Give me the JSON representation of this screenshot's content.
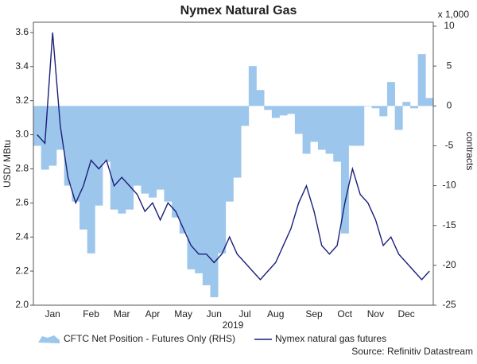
{
  "chart_data": {
    "type": "bar-line",
    "title": "Nymex Natural Gas",
    "y_label": "USD/ MBtu",
    "y2_label": "contracts",
    "y2_unit": "x 1,000",
    "x_label": "2019",
    "source": "Source: Refinitiv Datastream",
    "categories": [
      null,
      null,
      "Jan",
      null,
      null,
      null,
      null,
      "Feb",
      null,
      null,
      null,
      "Mar",
      null,
      null,
      null,
      "Apr",
      null,
      null,
      null,
      "May",
      null,
      null,
      null,
      "Jun",
      null,
      null,
      null,
      "Jul",
      null,
      null,
      null,
      "Aug",
      null,
      null,
      null,
      null,
      "Sep",
      null,
      null,
      null,
      "Oct",
      null,
      null,
      null,
      "Nov",
      null,
      null,
      null,
      "Dec",
      null,
      null,
      null
    ],
    "series": [
      {
        "name": "CFTC Net Position - Futures Only (RHS)",
        "color": "#9dc6ec",
        "axis": "y2",
        "kind": "bar",
        "values": [
          -5,
          -8,
          -7.5,
          -5.5,
          -10,
          -12,
          -15.5,
          -18.5,
          -12.5,
          -7,
          -13,
          -13.5,
          -13,
          -10,
          -11,
          -11.5,
          -10.5,
          -12,
          -14,
          -16,
          -20.5,
          -21,
          -22.5,
          -24,
          -18.5,
          -12,
          -9,
          -2.5,
          5,
          2,
          -0.5,
          -1.5,
          -1.2,
          -1,
          -3.5,
          -6,
          -4.5,
          -5.5,
          -6,
          -7,
          -16,
          -5,
          -5,
          0,
          -0.3,
          -1.3,
          3,
          -3,
          0.5,
          -0.3,
          6.5,
          1
        ]
      },
      {
        "name": "Nymex natural gas futures",
        "color": "#1a1f7a",
        "axis": "y",
        "kind": "line",
        "values": [
          3.0,
          2.95,
          3.6,
          3.05,
          2.75,
          2.6,
          2.7,
          2.85,
          2.8,
          2.85,
          2.7,
          2.75,
          2.7,
          2.65,
          2.55,
          2.6,
          2.5,
          2.6,
          2.55,
          2.45,
          2.35,
          2.3,
          2.3,
          2.25,
          2.3,
          2.4,
          2.3,
          2.25,
          2.2,
          2.15,
          2.2,
          2.25,
          2.35,
          2.45,
          2.6,
          2.7,
          2.55,
          2.35,
          2.3,
          2.35,
          2.6,
          2.8,
          2.65,
          2.6,
          2.5,
          2.35,
          2.4,
          2.3,
          2.25,
          2.2,
          2.15,
          2.2
        ]
      }
    ],
    "ylim": [
      2.0,
      3.66
    ],
    "yticks": [
      {
        "value": 2,
        "label": "2.0"
      },
      2.2,
      2.4,
      2.6,
      2.8,
      {
        "value": 3,
        "label": "3.0"
      },
      3.2,
      3.4,
      3.6
    ],
    "y2lim": [
      -25,
      10.5
    ],
    "y2ticks": [
      -25,
      -20,
      -15,
      -10,
      -5,
      0,
      5,
      10
    ]
  }
}
